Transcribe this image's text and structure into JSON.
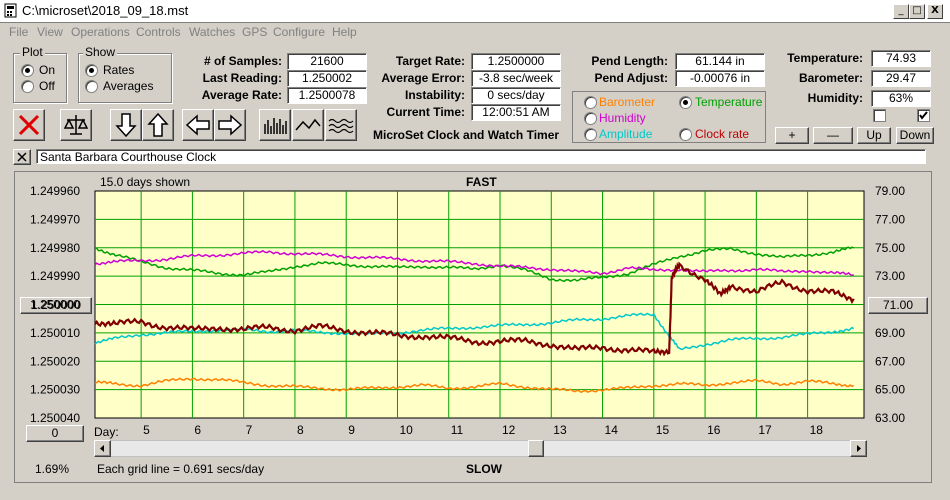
{
  "window": {
    "title": "C:\\microset\\2018_09_18.mst",
    "min": "_",
    "max": "□",
    "close": "X"
  },
  "menu": [
    "File",
    "View",
    "Operations",
    "Controls",
    "Watches",
    "GPS",
    "Configure",
    "Help"
  ],
  "plot_group": {
    "title": "Plot",
    "on": "On",
    "off": "Off",
    "selected": "On"
  },
  "show_group": {
    "title": "Show",
    "rates": "Rates",
    "averages": "Averages",
    "selected": "Rates"
  },
  "stats": {
    "samples_label": "# of Samples:",
    "samples": "21600",
    "last_label": "Last Reading:",
    "last": "1.250002",
    "avg_label": "Average Rate:",
    "avg": "1.2500078",
    "target_label": "Target Rate:",
    "target": "1.2500000",
    "err_label": "Average Error:",
    "err": "-3.8 sec/week",
    "inst_label": "Instability:",
    "inst": "0 secs/day",
    "time_label": "Current Time:",
    "time": "12:00:51 AM",
    "pendlen_label": "Pend Length:",
    "pendlen": "61.144 in",
    "pendadj_label": "Pend Adjust:",
    "pendadj": "-0.00076 in",
    "temp_label": "Temperature:",
    "temp": "74.93",
    "baro_label": "Barometer:",
    "baro": "29.47",
    "hum_label": "Humidity:",
    "hum": "63%"
  },
  "app_caption": "MicroSet Clock and Watch Timer",
  "series_options": {
    "barometer": "Barometer",
    "temperature": "Temperature",
    "humidity": "Humidity",
    "amplitude": "Amplitude",
    "clock_rate": "Clock rate",
    "selected": "Temperature",
    "colors": {
      "barometer": "#ff8000",
      "temperature": "#00a000",
      "humidity": "#d000d0",
      "amplitude": "#00c8c8",
      "clock_rate": "#c00000"
    }
  },
  "side_buttons": {
    "plus": "+",
    "minus": "—",
    "up": "Up",
    "down": "Down"
  },
  "clock_name": "Santa Barbara Courthouse Clock",
  "chart": {
    "days_shown": "15.0 days shown",
    "fast": "FAST",
    "slow": "SLOW",
    "grid_note": "Each grid line = 0.691 secs/day",
    "left_value_button": "1.250000",
    "right_value_button": "71.00",
    "zero_button": "0",
    "zoom": "1.69%",
    "day_label": "Day:"
  },
  "chart_data": {
    "type": "line",
    "xlabel": "Day:",
    "x_ticks": [
      5,
      6,
      7,
      8,
      9,
      10,
      11,
      12,
      13,
      14,
      15,
      16,
      17,
      18
    ],
    "xlim": [
      4.1,
      19.1
    ],
    "y_left_ticks": [
      "1.249960",
      "1.249970",
      "1.249980",
      "1.249990",
      "1.250000",
      "1.250010",
      "1.250020",
      "1.250030",
      "1.250040"
    ],
    "ylim_left": [
      1.24996,
      1.25004
    ],
    "y_right_ticks": [
      "79.00",
      "77.00",
      "75.00",
      "73.00",
      "71.00",
      "69.00",
      "67.00",
      "65.00",
      "63.00"
    ],
    "ylim_right": [
      63,
      79
    ],
    "grid": true,
    "series": [
      {
        "color": "#00a000",
        "axis": "right",
        "x": [
          4.1,
          4.5,
          5,
          5.5,
          6,
          6.5,
          7,
          7.5,
          8,
          8.5,
          9,
          9.5,
          10,
          10.5,
          11,
          11.5,
          12,
          12.5,
          13,
          13.5,
          14,
          14.5,
          15,
          15.5,
          16,
          16.5,
          17,
          17.5,
          18,
          18.5,
          18.9
        ],
        "values": [
          75,
          74.5,
          74,
          73.6,
          73.4,
          73.2,
          73.1,
          73.3,
          73.7,
          73.9,
          73.8,
          73.7,
          73.6,
          73.7,
          73.6,
          73.5,
          73.8,
          73.4,
          72.8,
          72.7,
          72.9,
          73.2,
          73.8,
          74.4,
          74.8,
          74.9,
          74.6,
          74.3,
          74.5,
          74.7,
          75
        ]
      },
      {
        "color": "#d000d0",
        "axis": "right",
        "x": [
          4.1,
          4.5,
          5,
          5.5,
          6,
          6.5,
          7,
          7.5,
          8,
          8.5,
          9,
          9.5,
          10,
          10.5,
          11,
          11.5,
          12,
          12.5,
          13,
          13.5,
          14,
          14.5,
          15,
          15.5,
          16,
          16.5,
          17,
          17.5,
          18,
          18.5,
          18.9
        ],
        "values": [
          73.9,
          74,
          74.1,
          74.2,
          74.4,
          74.5,
          74.6,
          74.7,
          74.6,
          74.5,
          74.4,
          74.3,
          74.2,
          74.1,
          74,
          73.9,
          73.7,
          73.6,
          73.5,
          73.3,
          73.2,
          73.6,
          73.4,
          73.5,
          73.3,
          73.4,
          73.5,
          73.3,
          73.4,
          73.2,
          73.1
        ]
      },
      {
        "color": "#00c8c8",
        "axis": "right",
        "x": [
          4.1,
          4.5,
          5,
          5.5,
          6,
          6.5,
          7,
          7.5,
          8,
          8.5,
          9,
          9.5,
          10,
          10.5,
          11,
          11.5,
          12,
          12.5,
          13,
          13.5,
          14,
          14.5,
          15,
          15.3,
          15.5,
          16,
          16.5,
          17,
          17.5,
          18,
          18.5,
          18.9
        ],
        "values": [
          68.3,
          68.6,
          68.9,
          69,
          69.1,
          69.2,
          69.2,
          69.1,
          69.2,
          69,
          69,
          68.9,
          69,
          69.2,
          69.3,
          69.4,
          69.5,
          69.6,
          69.7,
          69.9,
          70,
          70.2,
          70.3,
          68.8,
          67.8,
          68.2,
          68.5,
          68.6,
          68.7,
          68.9,
          69.1,
          69.3
        ]
      },
      {
        "color": "#ff8000",
        "axis": "right",
        "x": [
          4.1,
          4.5,
          5,
          5.5,
          6,
          6.5,
          7,
          7.5,
          8,
          8.5,
          9,
          9.5,
          10,
          10.5,
          11,
          11.5,
          12,
          12.5,
          13,
          13.5,
          14,
          14.5,
          15,
          15.5,
          16,
          16.5,
          17,
          17.5,
          18,
          18.5,
          18.9
        ],
        "values": [
          65.5,
          65.4,
          65.3,
          65.6,
          65.8,
          65.7,
          65.5,
          65.3,
          65.2,
          65.1,
          65,
          65.1,
          65.2,
          65.3,
          65.1,
          65.2,
          65.4,
          65.2,
          65,
          64.9,
          65,
          65.1,
          65.3,
          65.4,
          65.3,
          65.5,
          65.6,
          65.4,
          65.6,
          65.4,
          65.3
        ]
      },
      {
        "color": "#800000",
        "axis": "left",
        "x": [
          4.1,
          4.5,
          5,
          5.5,
          6,
          6.5,
          7,
          7.5,
          8,
          8.5,
          9,
          9.5,
          10,
          10.5,
          11,
          11.5,
          12,
          12.5,
          13,
          13.5,
          14,
          14.5,
          15,
          15.3,
          15.35,
          15.5,
          16,
          16.3,
          16.5,
          17,
          17.5,
          18,
          18.5,
          18.9
        ],
        "values": [
          1.250006,
          1.250007,
          1.250006,
          1.250008,
          1.250009,
          1.250008,
          1.250009,
          1.250008,
          1.250009,
          1.250008,
          1.250009,
          1.25001,
          1.250011,
          1.250011,
          1.250012,
          1.250013,
          1.250013,
          1.250013,
          1.250014,
          1.250016,
          1.250015,
          1.250016,
          1.250017,
          1.250016,
          1.249991,
          1.249986,
          1.249991,
          1.249997,
          1.249993,
          1.249996,
          1.249992,
          1.249995,
          1.249996,
          1.249998
        ]
      }
    ]
  }
}
